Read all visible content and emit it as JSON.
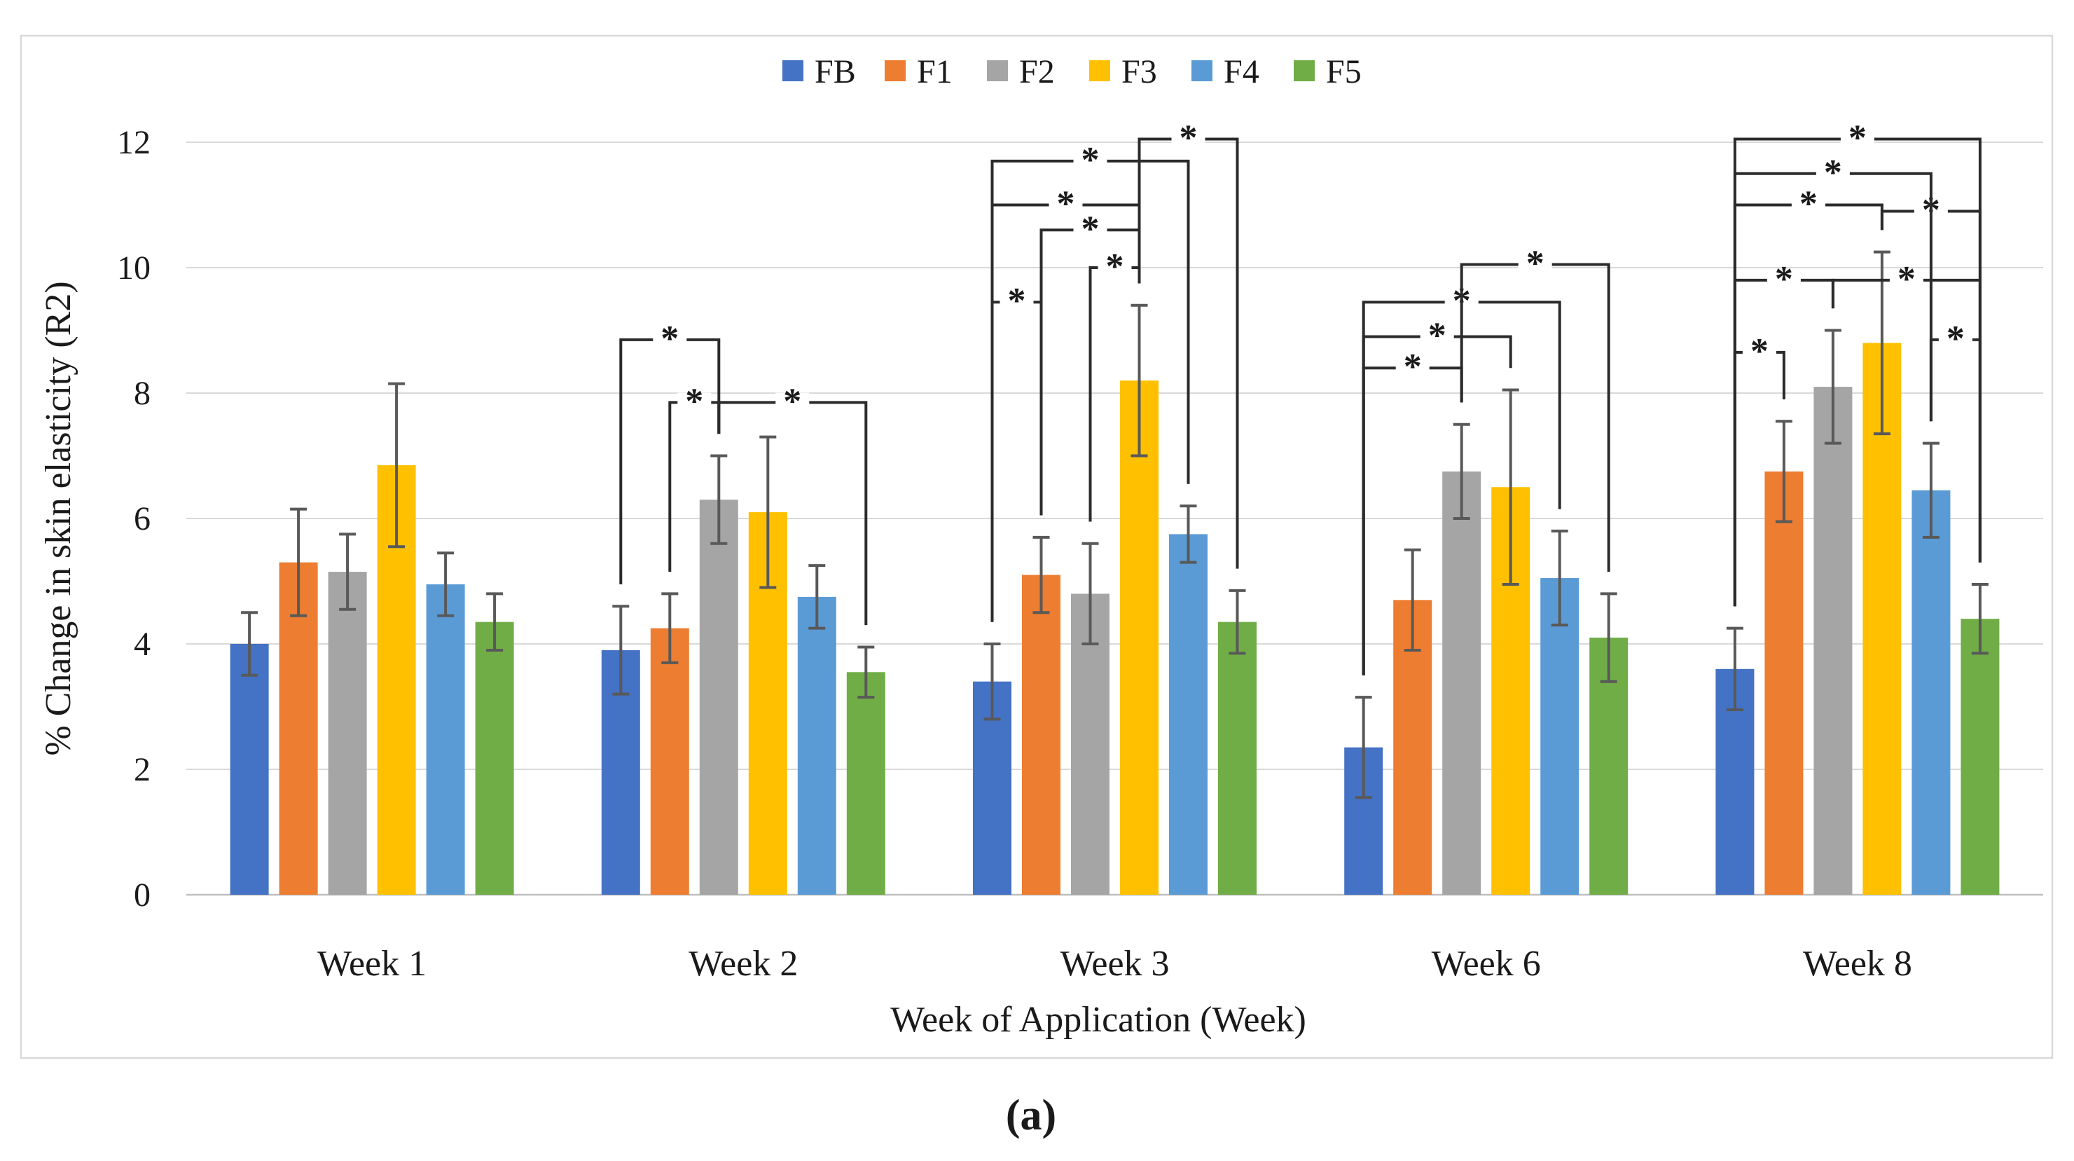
{
  "caption": "(a)",
  "legend": {
    "position": "top",
    "items": [
      {
        "label": "FB",
        "color": "#4472C4"
      },
      {
        "label": "F1",
        "color": "#ED7D31"
      },
      {
        "label": "F2",
        "color": "#A5A5A5"
      },
      {
        "label": "F3",
        "color": "#FFC000"
      },
      {
        "label": "F4",
        "color": "#5B9BD5"
      },
      {
        "label": "F5",
        "color": "#70AD47"
      }
    ]
  },
  "chart_data": {
    "type": "bar",
    "title": "",
    "xlabel": "Week of Application (Week)",
    "ylabel": "% Change in skin elasticity (R2)",
    "categories": [
      "Week 1",
      "Week 2",
      "Week 3",
      "Week 6",
      "Week 8"
    ],
    "ylim": [
      0,
      12
    ],
    "yticks": [
      0,
      2,
      4,
      6,
      8,
      10,
      12
    ],
    "grid": true,
    "legend_position": "top",
    "series": [
      {
        "name": "FB",
        "color": "#4472C4",
        "values": [
          4.0,
          3.9,
          3.4,
          2.35,
          3.6
        ],
        "errors": [
          0.5,
          0.7,
          0.6,
          0.8,
          0.65
        ]
      },
      {
        "name": "F1",
        "color": "#ED7D31",
        "values": [
          5.3,
          4.25,
          5.1,
          4.7,
          6.75
        ],
        "errors": [
          0.85,
          0.55,
          0.6,
          0.8,
          0.8
        ]
      },
      {
        "name": "F2",
        "color": "#A5A5A5",
        "values": [
          5.15,
          6.3,
          4.8,
          6.75,
          8.1
        ],
        "errors": [
          0.6,
          0.7,
          0.8,
          0.75,
          0.9
        ]
      },
      {
        "name": "F3",
        "color": "#FFC000",
        "values": [
          6.85,
          6.1,
          8.2,
          6.5,
          8.8
        ],
        "errors": [
          1.3,
          1.2,
          1.2,
          1.55,
          1.45
        ]
      },
      {
        "name": "F4",
        "color": "#5B9BD5",
        "values": [
          4.95,
          4.75,
          5.75,
          5.05,
          6.45
        ],
        "errors": [
          0.5,
          0.5,
          0.45,
          0.75,
          0.75
        ]
      },
      {
        "name": "F5",
        "color": "#70AD47",
        "values": [
          4.35,
          3.55,
          4.35,
          4.1,
          4.4
        ],
        "errors": [
          0.45,
          0.4,
          0.5,
          0.7,
          0.55
        ]
      }
    ],
    "significance_brackets": [
      {
        "week": "Week 2",
        "a": "FB",
        "b": "F2",
        "y": 8.85,
        "label": "*"
      },
      {
        "week": "Week 2",
        "a": "F1",
        "b": "F2",
        "y": 7.85,
        "label": "*"
      },
      {
        "week": "Week 2",
        "a": "F2",
        "b": "F5",
        "y": 7.85,
        "label": "*"
      },
      {
        "week": "Week 3",
        "a": "FB",
        "b": "F1",
        "y": 9.45,
        "label": "*"
      },
      {
        "week": "Week 3",
        "a": "F2",
        "b": "F3",
        "y": 10.0,
        "label": "*"
      },
      {
        "week": "Week 3",
        "a": "F1",
        "b": "F3",
        "y": 10.6,
        "label": "*"
      },
      {
        "week": "Week 3",
        "a": "FB",
        "b": "F3",
        "y": 11.0,
        "label": "*"
      },
      {
        "week": "Week 3",
        "a": "FB",
        "b": "F4",
        "y": 11.7,
        "label": "*"
      },
      {
        "week": "Week 3",
        "a": "F3",
        "b": "F5",
        "y": 12.05,
        "label": "*"
      },
      {
        "week": "Week 6",
        "a": "FB",
        "b": "F2",
        "y": 8.4,
        "label": "*"
      },
      {
        "week": "Week 6",
        "a": "FB",
        "b": "F3",
        "y": 8.9,
        "label": "*"
      },
      {
        "week": "Week 6",
        "a": "FB",
        "b": "F4",
        "y": 9.45,
        "label": "*"
      },
      {
        "week": "Week 6",
        "a": "F2",
        "b": "F5",
        "y": 10.05,
        "label": "*"
      },
      {
        "week": "Week 8",
        "a": "FB",
        "b": "F1",
        "y": 8.65,
        "label": "*"
      },
      {
        "week": "Week 8",
        "a": "FB",
        "b": "F2",
        "y": 9.8,
        "label": "*"
      },
      {
        "week": "Week 8",
        "a": "F2",
        "b": "F5",
        "y": 9.8,
        "label": "*"
      },
      {
        "week": "Week 8",
        "a": "F4",
        "b": "F5",
        "y": 8.85,
        "label": "*"
      },
      {
        "week": "Week 8",
        "a": "F3",
        "b": "F5",
        "y": 10.9,
        "label": "*"
      },
      {
        "week": "Week 8",
        "a": "FB",
        "b": "F3",
        "y": 11.0,
        "label": "*"
      },
      {
        "week": "Week 8",
        "a": "FB",
        "b": "F4",
        "y": 11.5,
        "label": "*"
      },
      {
        "week": "Week 8",
        "a": "FB",
        "b": "F5",
        "y": 12.05,
        "label": "*"
      }
    ]
  },
  "style_colors": {
    "gridline": "#D9D9D9",
    "baseline": "#BFBFBF",
    "frame_border": "#D9D9D9",
    "error_bar": "#595959",
    "bracket": "#2B2B2B",
    "text": "#1A1A1A"
  }
}
